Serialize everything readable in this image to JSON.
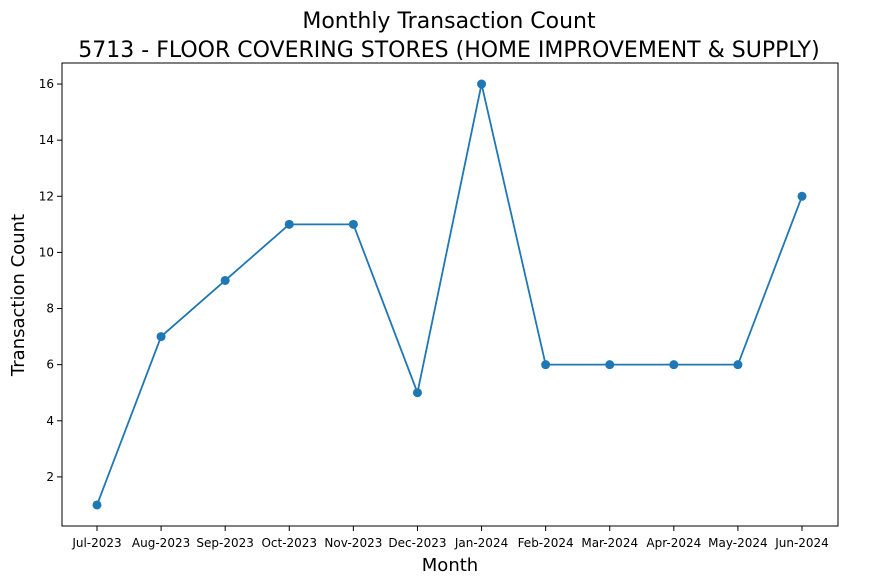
{
  "chart_data": {
    "type": "line",
    "title": "Monthly Transaction Count",
    "subtitle": "5713 - FLOOR COVERING STORES (HOME IMPROVEMENT & SUPPLY)",
    "xlabel": "Month",
    "ylabel": "Transaction Count",
    "categories": [
      "Jul-2023",
      "Aug-2023",
      "Sep-2023",
      "Oct-2023",
      "Nov-2023",
      "Dec-2023",
      "Jan-2024",
      "Feb-2024",
      "Mar-2024",
      "Apr-2024",
      "May-2024",
      "Jun-2024"
    ],
    "values": [
      1,
      7,
      9,
      11,
      11,
      5,
      16,
      6,
      6,
      6,
      6,
      12
    ],
    "yticks": [
      2,
      4,
      6,
      8,
      10,
      12,
      14,
      16
    ],
    "ylim": [
      0.25,
      16.75
    ],
    "grid": false,
    "line_color": "#1f77b4",
    "marker": "circle"
  }
}
